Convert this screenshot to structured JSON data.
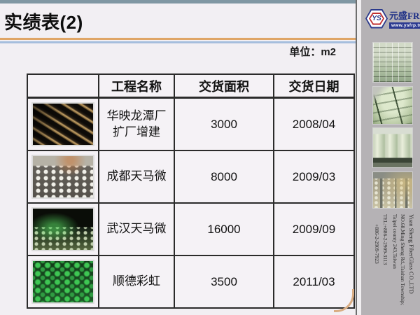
{
  "slide": {
    "title": "实绩表(2)",
    "unit_label": "单位：m2"
  },
  "logo": {
    "badge_text": "YS",
    "company_name_cn": "元盛FRP",
    "website": "www.ysfrp.tw"
  },
  "sidebar": {
    "photos": [
      {
        "name": "coffered-ceiling-photo"
      },
      {
        "name": "frp-tank-pipes-photo"
      },
      {
        "name": "storage-tanks-photo"
      },
      {
        "name": "factory-interior-photo"
      }
    ],
    "company_info_lines": [
      "Yuan Sheng FiberGlass CO.,LTD",
      "NO.68,Ming Sheng Rd.,Taishan Township;",
      "Taipei county 243,Taiwan",
      "TEL:+886-2-2909-3113",
      "+886-2-2909-7923"
    ]
  },
  "table": {
    "headers": [
      "",
      "工程名称",
      "交货面积",
      "交货日期"
    ],
    "rows": [
      {
        "project": "华映龙潭厂\n扩厂增建",
        "area": "3000",
        "date": "2008/04"
      },
      {
        "project": "成都天马微",
        "area": "8000",
        "date": "2009/03"
      },
      {
        "project": "武汉天马微",
        "area": "16000",
        "date": "2009/09"
      },
      {
        "project": "顺德彩虹",
        "area": "3500",
        "date": "2011/03"
      }
    ]
  },
  "colors": {
    "accent_orange": "#dfa566",
    "accent_blue": "#a6bedd",
    "top_bar": "#8097a3",
    "sidebar_bg": "#b5b2b5",
    "logo_blue": "#2b3990",
    "logo_red": "#c03030",
    "table_border": "#2b2b2b"
  }
}
